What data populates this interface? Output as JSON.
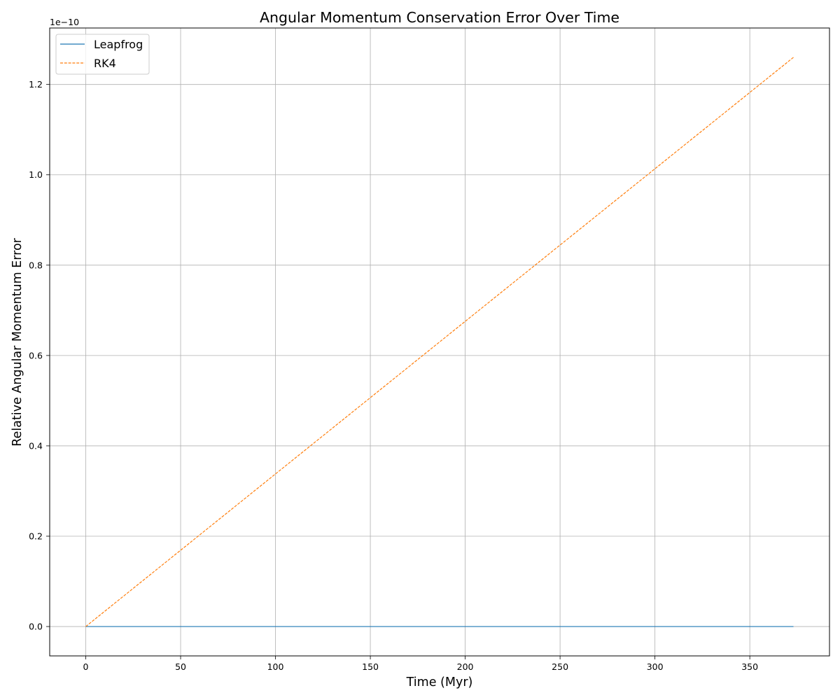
{
  "chart_data": {
    "type": "line",
    "title": "Angular Momentum Conservation Error Over Time",
    "xlabel": "Time (Myr)",
    "ylabel": "Relative Angular Momentum Error",
    "y_offset_label": "1e−10",
    "y_scale_factor": 1e-10,
    "xlim": [
      -19,
      392
    ],
    "ylim": [
      -0.065,
      1.325
    ],
    "x_ticks": [
      0,
      50,
      100,
      150,
      200,
      250,
      300,
      350
    ],
    "x_tick_labels": [
      "0",
      "50",
      "100",
      "150",
      "200",
      "250",
      "300",
      "350"
    ],
    "y_ticks": [
      0.0,
      0.2,
      0.4,
      0.6,
      0.8,
      1.0,
      1.2
    ],
    "y_tick_labels": [
      "0.0",
      "0.2",
      "0.4",
      "0.6",
      "0.8",
      "1.0",
      "1.2"
    ],
    "grid": true,
    "legend_position": "top-left",
    "series": [
      {
        "name": "Leapfrog",
        "color": "#1f77b4",
        "line_style": "solid",
        "x": [
          0,
          373
        ],
        "y": [
          0.0,
          0.0
        ]
      },
      {
        "name": "RK4",
        "color": "#ff7f0e",
        "line_style": "dashed",
        "x": [
          0,
          373
        ],
        "y": [
          0.0,
          1.26
        ]
      }
    ]
  }
}
